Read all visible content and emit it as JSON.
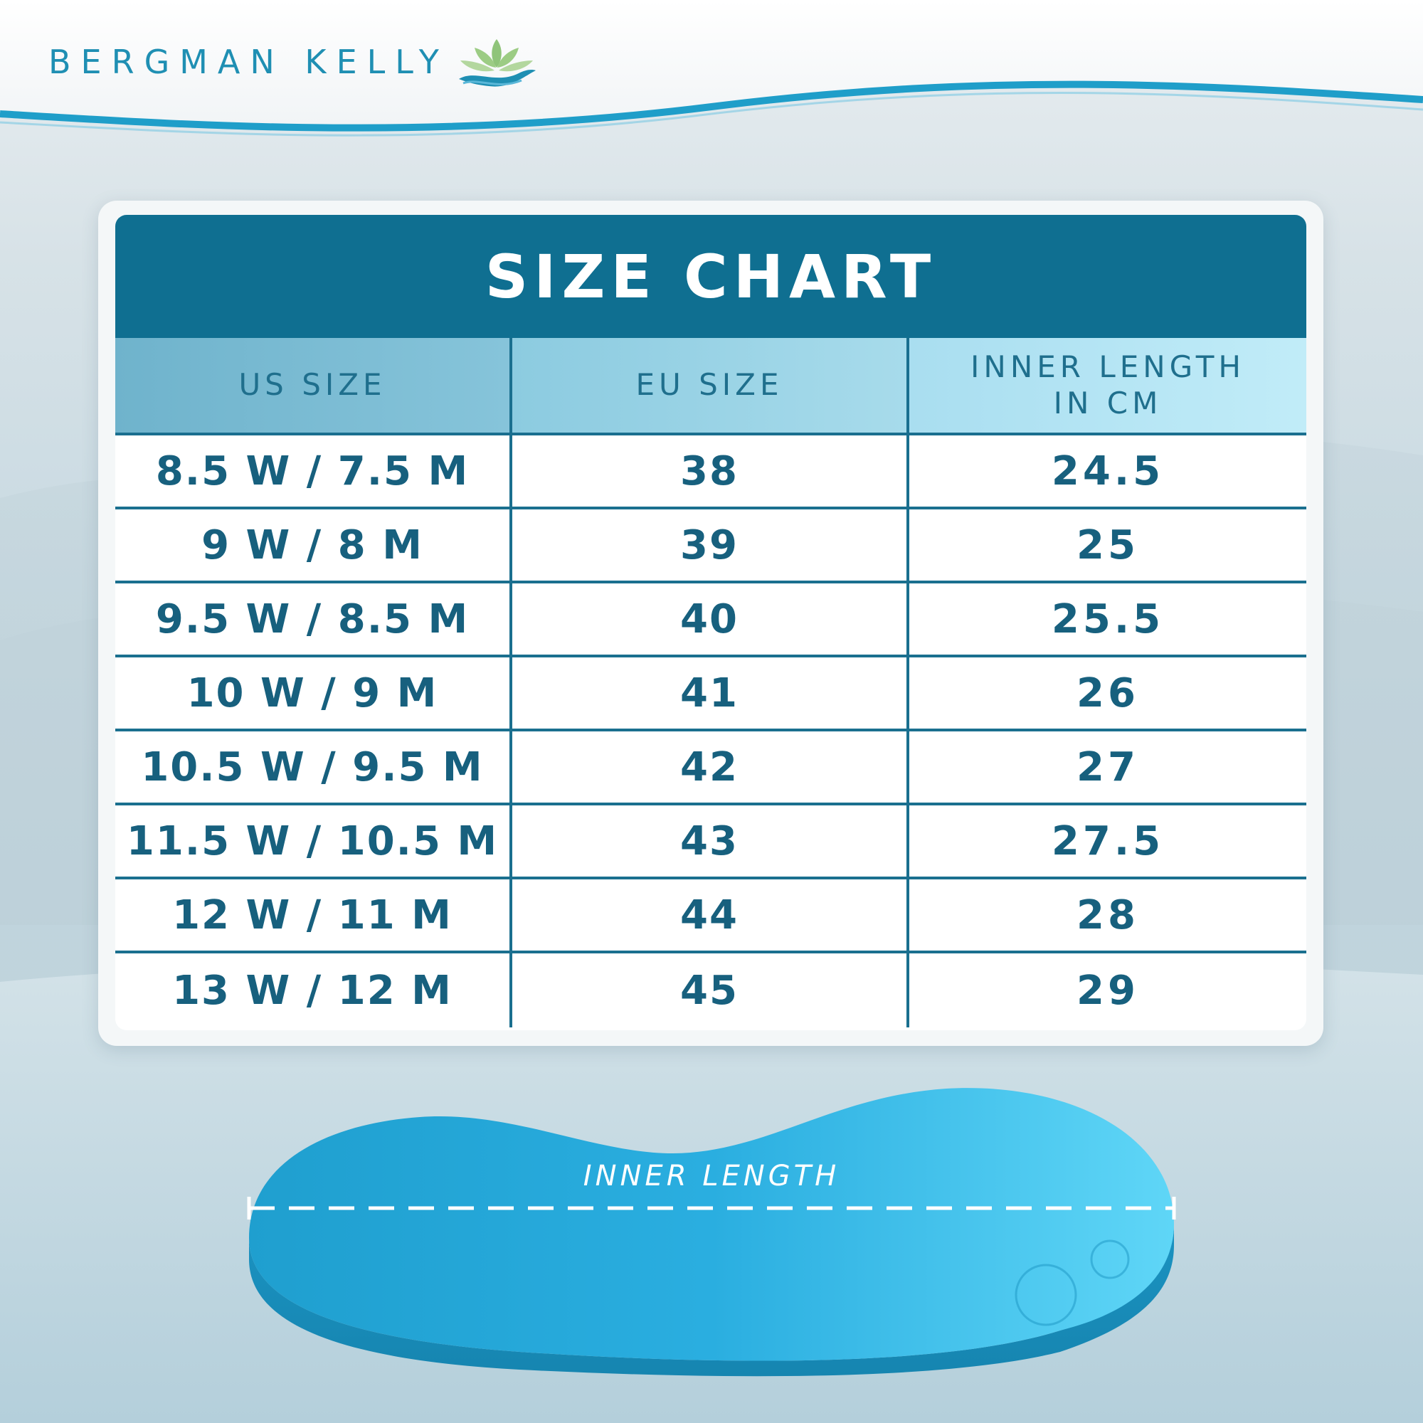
{
  "brand": {
    "name": "BERGMAN KELLY",
    "accent": "#1f8fb3",
    "logo_icon": "lotus-wave-icon"
  },
  "size_chart": {
    "title": "SIZE CHART",
    "columns": [
      "US SIZE",
      "EU SIZE",
      "INNER LENGTH IN CM"
    ],
    "rows": [
      [
        "8.5 W / 7.5 M",
        "38",
        "24.5"
      ],
      [
        "9 W / 8 M",
        "39",
        "25"
      ],
      [
        "9.5 W / 8.5 M",
        "40",
        "25.5"
      ],
      [
        "10 W / 9 M",
        "41",
        "26"
      ],
      [
        "10.5 W / 9.5 M",
        "42",
        "27"
      ],
      [
        "11.5 W / 10.5 M",
        "43",
        "27.5"
      ],
      [
        "12 W / 11 M",
        "44",
        "28"
      ],
      [
        "13 W / 12 M",
        "45",
        "29"
      ]
    ],
    "header_color": "#0f6f91",
    "line_color": "#1a6f8f",
    "text_color": "#17607e"
  },
  "insole": {
    "label": "INNER LENGTH",
    "color": "#1aa3d4"
  }
}
